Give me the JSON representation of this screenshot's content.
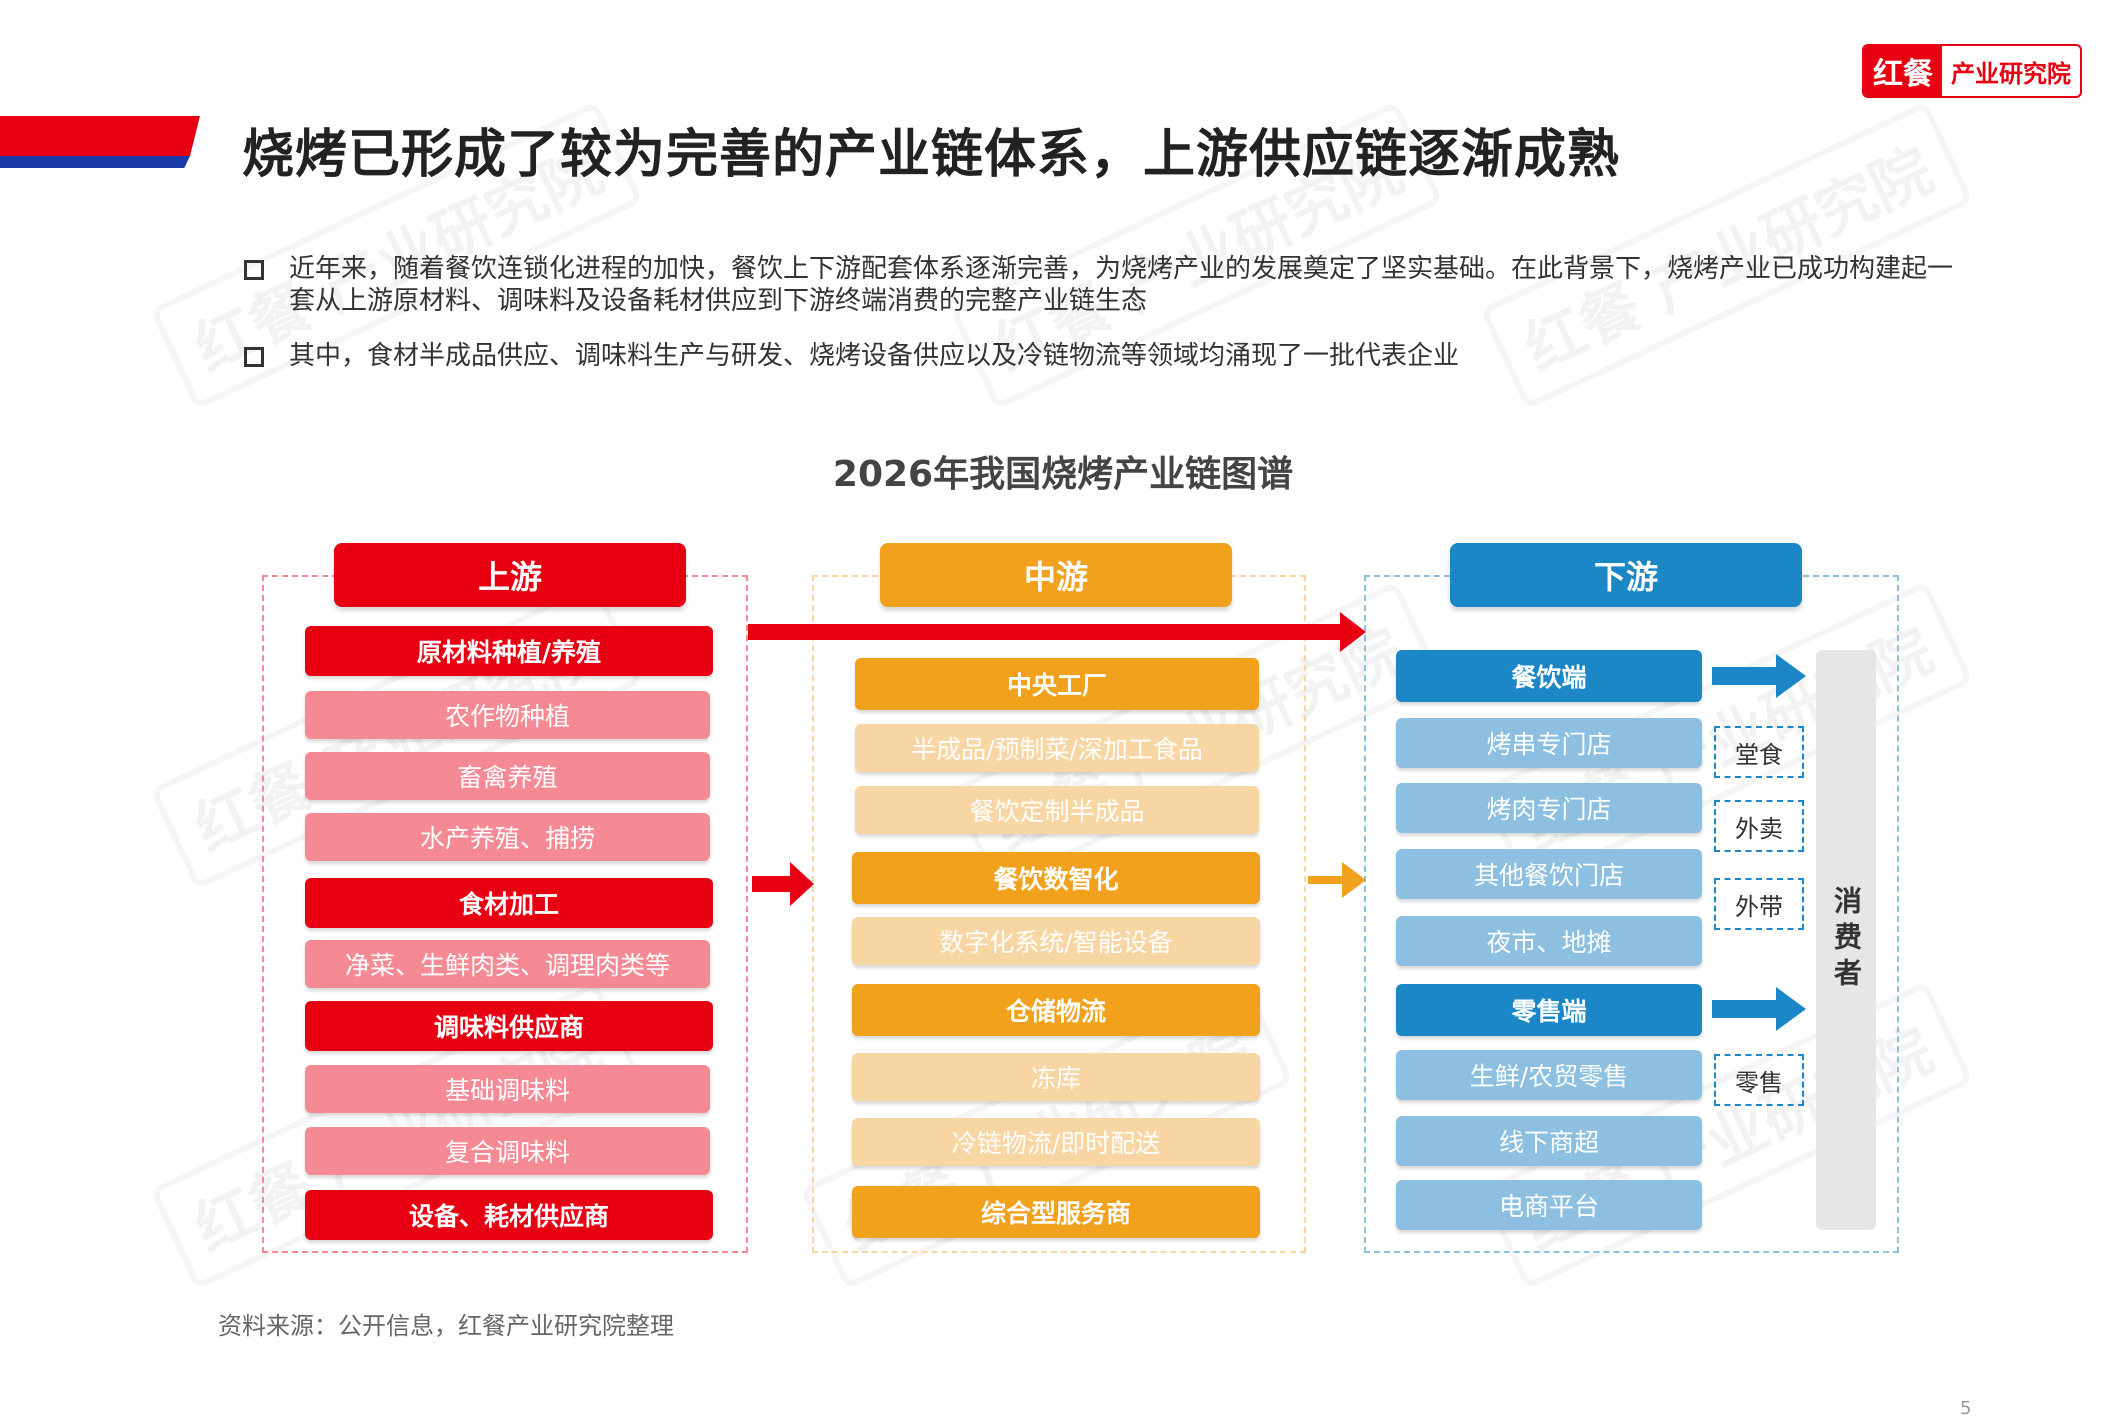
{
  "header": {
    "title": "烧烤已形成了较为完善的产业链体系，上游供应链逐渐成熟",
    "logo_mark": "红餐",
    "logo_text": "产业研究院"
  },
  "bullets": [
    "近年来，随着餐饮连锁化进程的加快，餐饮上下游配套体系逐渐完善，为烧烤产业的发展奠定了坚实基础。在此背景下，烧烤产业已成功构建起一套从上游原材料、调味料及设备耗材供应到下游终端消费的完整产业链生态",
    "其中，食材半成品供应、调味料生产与研发、烧烤设备供应以及冷链物流等领域均涌现了一批代表企业"
  ],
  "watermark": "红餐 产业研究院",
  "diagram": {
    "title": "2026年我国烧烤产业链图谱",
    "upstream": {
      "header": "上游",
      "items": [
        "原材料种植/养殖",
        "农作物种植",
        "畜禽养殖",
        "水产养殖、捕捞",
        "食材加工",
        "净菜、生鲜肉类、调理肉类等",
        "调味料供应商",
        "基础调味料",
        "复合调味料",
        "设备、耗材供应商"
      ]
    },
    "midstream": {
      "header": "中游",
      "items": [
        "中央工厂",
        "半成品/预制菜/深加工食品",
        "餐饮定制半成品",
        "餐饮数智化",
        "数字化系统/智能设备",
        "仓储物流",
        "冻库",
        "冷链物流/即时配送",
        "综合型服务商"
      ]
    },
    "downstream": {
      "header": "下游",
      "items": [
        "餐饮端",
        "烤串专门店",
        "烤肉专门店",
        "其他餐饮门店",
        "夜市、地摊",
        "零售端",
        "生鲜/农贸零售",
        "线下商超",
        "电商平台"
      ],
      "tags": [
        "堂食",
        "外卖",
        "外带",
        "零售"
      ],
      "consumer": "消费者"
    },
    "colors": {
      "upstream": "#e60012",
      "midstream": "#f2a11c",
      "downstream": "#1b87c6"
    }
  },
  "footer": {
    "source": "资料来源：公开信息，红餐产业研究院整理",
    "page": "5"
  }
}
